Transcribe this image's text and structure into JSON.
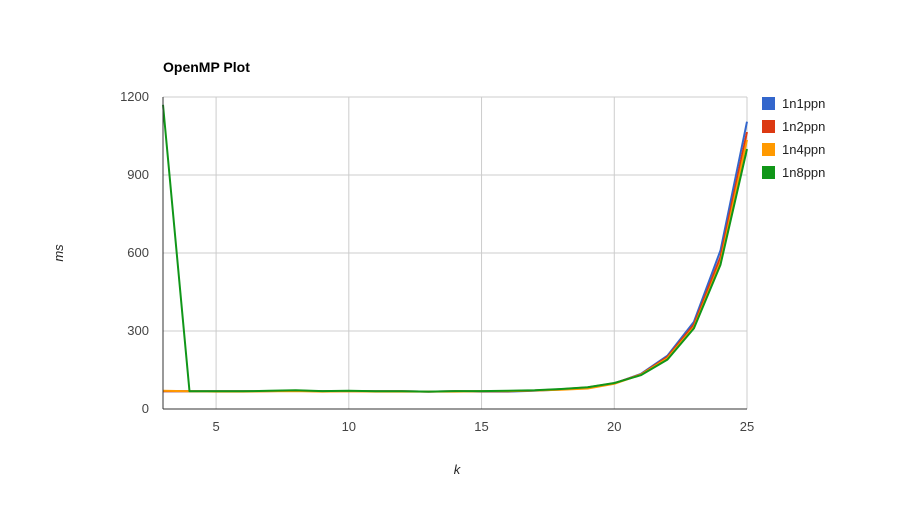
{
  "chart_data": {
    "type": "line",
    "title": "OpenMP Plot",
    "xlabel": "k",
    "ylabel": "ms",
    "xlim": [
      3,
      25
    ],
    "ylim": [
      0,
      1200
    ],
    "xticks": [
      "5",
      "10",
      "15",
      "20",
      "25"
    ],
    "yticks": [
      "0",
      "300",
      "600",
      "900",
      "1200"
    ],
    "grid": true,
    "legend": "right",
    "x": [
      3,
      4,
      5,
      6,
      7,
      8,
      9,
      10,
      11,
      12,
      13,
      14,
      15,
      16,
      17,
      18,
      19,
      20,
      21,
      22,
      23,
      24,
      25
    ],
    "series": [
      {
        "name": "1n1ppn",
        "color": "#3366cc",
        "values": [
          68,
          68,
          68,
          68,
          69,
          70,
          68,
          69,
          68,
          68,
          67,
          68,
          67,
          67,
          70,
          75,
          82,
          98,
          135,
          205,
          335,
          610,
          1105
        ]
      },
      {
        "name": "1n2ppn",
        "color": "#dc3912",
        "values": [
          68,
          68,
          68,
          68,
          69,
          70,
          68,
          69,
          68,
          68,
          67,
          68,
          68,
          68,
          71,
          76,
          83,
          99,
          133,
          200,
          325,
          585,
          1065
        ]
      },
      {
        "name": "1n4ppn",
        "color": "#ff9900",
        "values": [
          70,
          68,
          67,
          67,
          68,
          69,
          67,
          68,
          67,
          67,
          67,
          67,
          68,
          69,
          71,
          74,
          79,
          97,
          132,
          195,
          315,
          565,
          1035
        ]
      },
      {
        "name": "1n8ppn",
        "color": "#109618",
        "values": [
          1170,
          68,
          68,
          68,
          70,
          72,
          69,
          70,
          68,
          68,
          67,
          69,
          69,
          70,
          72,
          77,
          84,
          100,
          130,
          190,
          310,
          555,
          1000
        ]
      }
    ]
  }
}
